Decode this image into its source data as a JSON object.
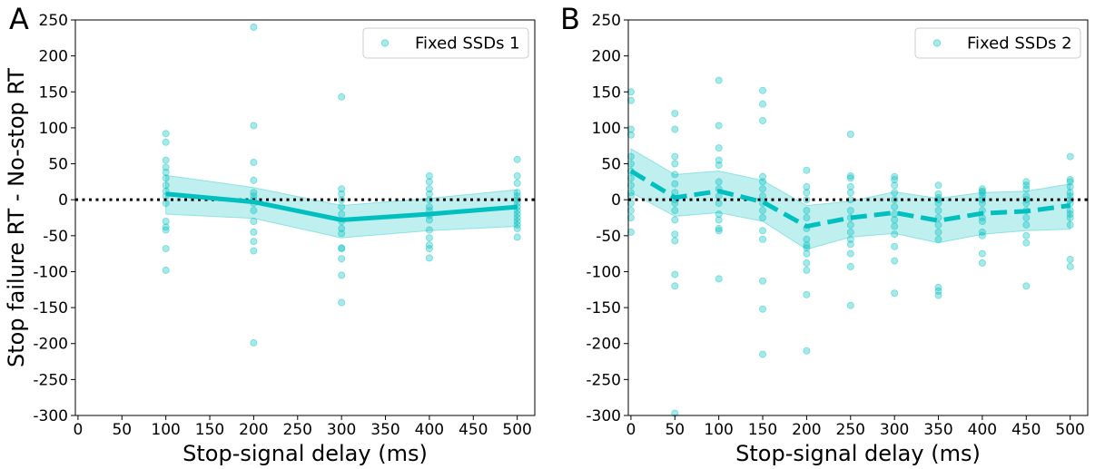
{
  "figure": {
    "ylabel": "Stop failure RT - No-stop RT",
    "color": "#00bfbf",
    "band_color": "#00bfbf"
  },
  "chart_data": [
    {
      "type": "line",
      "panel_letter": "A",
      "legend": "Fixed SSDs 1",
      "xlabel": "Stop-signal delay (ms)",
      "xlim": [
        -3,
        520
      ],
      "ylim": [
        -300,
        250
      ],
      "xticks": [
        0,
        50,
        100,
        150,
        200,
        250,
        300,
        350,
        400,
        450,
        500
      ],
      "yticks": [
        250,
        200,
        150,
        100,
        50,
        0,
        -50,
        -100,
        -150,
        -200,
        -250,
        -300
      ],
      "line_style": "solid",
      "reference_line": 0,
      "mean": {
        "x": [
          100,
          200,
          300,
          400,
          500
        ],
        "y": [
          8,
          -3,
          -28,
          -20,
          -10
        ]
      },
      "band": {
        "x": [
          100,
          200,
          300,
          400,
          500
        ],
        "lower": [
          -20,
          -26,
          -53,
          -43,
          -37
        ],
        "upper": [
          34,
          17,
          -8,
          2,
          14
        ]
      },
      "points": [
        [
          100,
          92
        ],
        [
          100,
          80
        ],
        [
          100,
          55
        ],
        [
          100,
          45
        ],
        [
          100,
          38
        ],
        [
          100,
          30
        ],
        [
          100,
          20
        ],
        [
          100,
          12
        ],
        [
          100,
          5
        ],
        [
          100,
          -5
        ],
        [
          100,
          -30
        ],
        [
          100,
          -38
        ],
        [
          100,
          -42
        ],
        [
          100,
          -68
        ],
        [
          100,
          -98
        ],
        [
          200,
          240
        ],
        [
          200,
          103
        ],
        [
          200,
          52
        ],
        [
          200,
          27
        ],
        [
          200,
          10
        ],
        [
          200,
          5
        ],
        [
          200,
          0
        ],
        [
          200,
          -5
        ],
        [
          200,
          -15
        ],
        [
          200,
          -30
        ],
        [
          200,
          -45
        ],
        [
          200,
          -58
        ],
        [
          200,
          -71
        ],
        [
          200,
          -199
        ],
        [
          300,
          143
        ],
        [
          300,
          15
        ],
        [
          300,
          8
        ],
        [
          300,
          0
        ],
        [
          300,
          -10
        ],
        [
          300,
          -20
        ],
        [
          300,
          -30
        ],
        [
          300,
          -40
        ],
        [
          300,
          -47
        ],
        [
          300,
          -67
        ],
        [
          300,
          -68
        ],
        [
          300,
          -82
        ],
        [
          300,
          -105
        ],
        [
          300,
          -143
        ],
        [
          400,
          33
        ],
        [
          400,
          25
        ],
        [
          400,
          15
        ],
        [
          400,
          8
        ],
        [
          400,
          0
        ],
        [
          400,
          -10
        ],
        [
          400,
          -15
        ],
        [
          400,
          -22
        ],
        [
          400,
          -28
        ],
        [
          400,
          -42
        ],
        [
          400,
          -53
        ],
        [
          400,
          -63
        ],
        [
          400,
          -68
        ],
        [
          400,
          -81
        ],
        [
          500,
          56
        ],
        [
          500,
          33
        ],
        [
          500,
          23
        ],
        [
          500,
          10
        ],
        [
          500,
          5
        ],
        [
          500,
          0
        ],
        [
          500,
          -5
        ],
        [
          500,
          -10
        ],
        [
          500,
          -15
        ],
        [
          500,
          -20
        ],
        [
          500,
          -25
        ],
        [
          500,
          -30
        ],
        [
          500,
          -35
        ],
        [
          500,
          -40
        ],
        [
          500,
          -52
        ]
      ]
    },
    {
      "type": "line",
      "panel_letter": "B",
      "legend": "Fixed SSDs 2",
      "xlabel": "Stop-signal delay (ms)",
      "xlim": [
        -3,
        520
      ],
      "ylim": [
        -300,
        250
      ],
      "xticks": [
        0,
        50,
        100,
        150,
        200,
        250,
        300,
        350,
        400,
        450,
        500
      ],
      "yticks": [
        250,
        200,
        150,
        100,
        50,
        0,
        -50,
        -100,
        -150,
        -200,
        -250,
        -300
      ],
      "line_style": "dashed",
      "reference_line": 0,
      "mean": {
        "x": [
          0,
          50,
          100,
          150,
          200,
          250,
          300,
          350,
          400,
          450,
          500
        ],
        "y": [
          40,
          3,
          12,
          -3,
          -37,
          -25,
          -18,
          -29,
          -19,
          -16,
          -8
        ]
      },
      "band": {
        "x": [
          0,
          50,
          100,
          150,
          200,
          250,
          300,
          350,
          400,
          450,
          500
        ],
        "lower": [
          10,
          -23,
          -18,
          -30,
          -69,
          -52,
          -47,
          -60,
          -48,
          -43,
          -41
        ],
        "upper": [
          71,
          35,
          40,
          27,
          -8,
          -2,
          11,
          2,
          10,
          12,
          22
        ]
      },
      "points": [
        [
          0,
          150
        ],
        [
          0,
          138
        ],
        [
          0,
          98
        ],
        [
          0,
          90
        ],
        [
          0,
          60
        ],
        [
          0,
          50
        ],
        [
          0,
          40
        ],
        [
          0,
          30
        ],
        [
          0,
          20
        ],
        [
          0,
          10
        ],
        [
          0,
          5
        ],
        [
          0,
          -5
        ],
        [
          0,
          -15
        ],
        [
          0,
          -25
        ],
        [
          0,
          -45
        ],
        [
          50,
          120
        ],
        [
          50,
          98
        ],
        [
          50,
          60
        ],
        [
          50,
          50
        ],
        [
          50,
          35
        ],
        [
          50,
          22
        ],
        [
          50,
          10
        ],
        [
          50,
          0
        ],
        [
          50,
          -5
        ],
        [
          50,
          -15
        ],
        [
          50,
          -28
        ],
        [
          50,
          -48
        ],
        [
          50,
          -57
        ],
        [
          50,
          -104
        ],
        [
          50,
          -120
        ],
        [
          50,
          -297
        ],
        [
          100,
          166
        ],
        [
          100,
          103
        ],
        [
          100,
          72
        ],
        [
          100,
          55
        ],
        [
          100,
          48
        ],
        [
          100,
          25
        ],
        [
          100,
          15
        ],
        [
          100,
          5
        ],
        [
          100,
          -5
        ],
        [
          100,
          -20
        ],
        [
          100,
          -28
        ],
        [
          100,
          -40
        ],
        [
          100,
          -43
        ],
        [
          100,
          -110
        ],
        [
          150,
          152
        ],
        [
          150,
          133
        ],
        [
          150,
          110
        ],
        [
          150,
          32
        ],
        [
          150,
          25
        ],
        [
          150,
          15
        ],
        [
          150,
          5
        ],
        [
          150,
          -5
        ],
        [
          150,
          -15
        ],
        [
          150,
          -25
        ],
        [
          150,
          -43
        ],
        [
          150,
          -55
        ],
        [
          150,
          -113
        ],
        [
          150,
          -152
        ],
        [
          150,
          -215
        ],
        [
          200,
          41
        ],
        [
          200,
          18
        ],
        [
          200,
          10
        ],
        [
          200,
          0
        ],
        [
          200,
          -15
        ],
        [
          200,
          -25
        ],
        [
          200,
          -40
        ],
        [
          200,
          -55
        ],
        [
          200,
          -63
        ],
        [
          200,
          -67
        ],
        [
          200,
          -75
        ],
        [
          200,
          -88
        ],
        [
          200,
          -98
        ],
        [
          200,
          -132
        ],
        [
          200,
          -210
        ],
        [
          250,
          91
        ],
        [
          250,
          33
        ],
        [
          250,
          30
        ],
        [
          250,
          18
        ],
        [
          250,
          10
        ],
        [
          250,
          0
        ],
        [
          250,
          -15
        ],
        [
          250,
          -25
        ],
        [
          250,
          -35
        ],
        [
          250,
          -45
        ],
        [
          250,
          -55
        ],
        [
          250,
          -62
        ],
        [
          250,
          -75
        ],
        [
          250,
          -93
        ],
        [
          250,
          -147
        ],
        [
          300,
          32
        ],
        [
          300,
          28
        ],
        [
          300,
          20
        ],
        [
          300,
          10
        ],
        [
          300,
          0
        ],
        [
          300,
          -10
        ],
        [
          300,
          -20
        ],
        [
          300,
          -28
        ],
        [
          300,
          -37
        ],
        [
          300,
          -48
        ],
        [
          300,
          -65
        ],
        [
          300,
          -85
        ],
        [
          300,
          -130
        ],
        [
          350,
          20
        ],
        [
          350,
          8
        ],
        [
          350,
          3
        ],
        [
          350,
          0
        ],
        [
          350,
          -5
        ],
        [
          350,
          -15
        ],
        [
          350,
          -25
        ],
        [
          350,
          -35
        ],
        [
          350,
          -45
        ],
        [
          350,
          -55
        ],
        [
          350,
          -122
        ],
        [
          350,
          -127
        ],
        [
          350,
          -133
        ],
        [
          400,
          15
        ],
        [
          400,
          12
        ],
        [
          400,
          10
        ],
        [
          400,
          5
        ],
        [
          400,
          0
        ],
        [
          400,
          -5
        ],
        [
          400,
          -15
        ],
        [
          400,
          -25
        ],
        [
          400,
          -30
        ],
        [
          400,
          -45
        ],
        [
          400,
          -50
        ],
        [
          400,
          -75
        ],
        [
          400,
          -88
        ],
        [
          450,
          25
        ],
        [
          450,
          20
        ],
        [
          450,
          15
        ],
        [
          450,
          5
        ],
        [
          450,
          0
        ],
        [
          450,
          -5
        ],
        [
          450,
          -15
        ],
        [
          450,
          -25
        ],
        [
          450,
          -35
        ],
        [
          450,
          -50
        ],
        [
          450,
          -60
        ],
        [
          450,
          -120
        ],
        [
          500,
          60
        ],
        [
          500,
          28
        ],
        [
          500,
          25
        ],
        [
          500,
          18
        ],
        [
          500,
          10
        ],
        [
          500,
          5
        ],
        [
          500,
          0
        ],
        [
          500,
          -5
        ],
        [
          500,
          -15
        ],
        [
          500,
          -20
        ],
        [
          500,
          -25
        ],
        [
          500,
          -35
        ],
        [
          500,
          -83
        ],
        [
          500,
          -93
        ]
      ]
    }
  ]
}
